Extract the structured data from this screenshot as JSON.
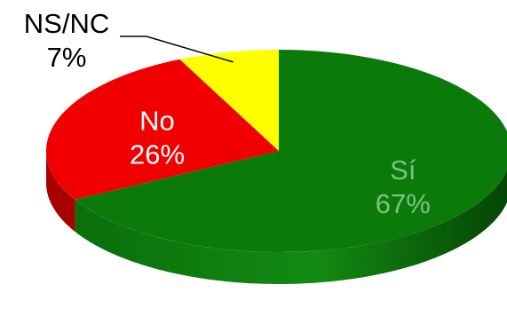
{
  "chart_data": {
    "type": "pie",
    "three_d": true,
    "slices": [
      {
        "label": "Sí",
        "value": 67,
        "value_label": "67%",
        "color": "#0a7a0a",
        "side_color": "#075c07",
        "label_color": "#7ec27e"
      },
      {
        "label": "No",
        "value": 26,
        "value_label": "26%",
        "color": "#f00000",
        "side_color": "#a80000",
        "label_color": "#ffffff"
      },
      {
        "label": "NS/NC",
        "value": 7,
        "value_label": "7%",
        "color": "#ffff00",
        "side_color": "#c8c800",
        "label_color": "#000000"
      }
    ]
  }
}
